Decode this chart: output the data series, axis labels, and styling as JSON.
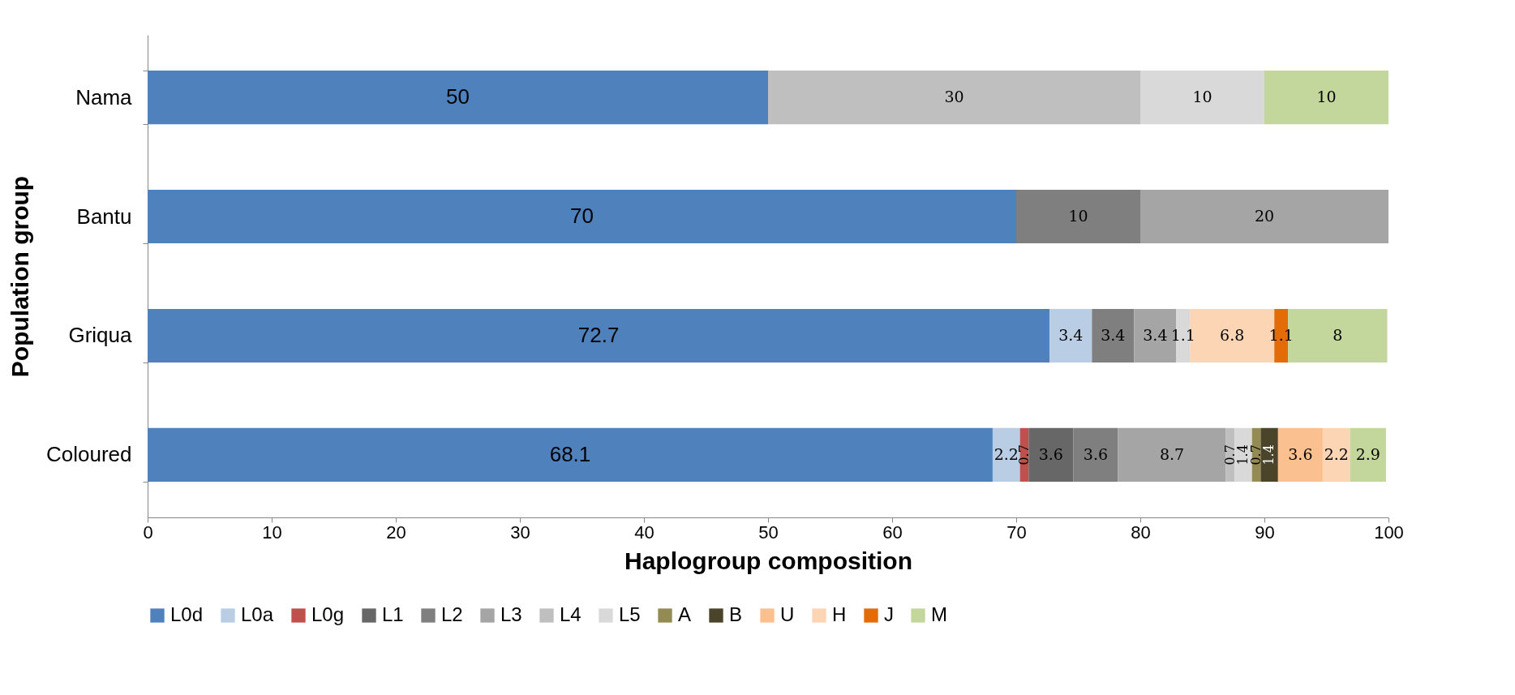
{
  "chart_data": {
    "type": "bar",
    "orientation": "horizontal",
    "stacked": true,
    "xlabel": "Haplogroup composition",
    "ylabel": "Population group",
    "categories": [
      "Nama",
      "Bantu",
      "Griqua",
      "Coloured"
    ],
    "series": [
      {
        "name": "L0d",
        "color": "#4f81bd",
        "values": [
          50,
          70,
          72.7,
          68.1
        ]
      },
      {
        "name": "L0a",
        "color": "#b9cde5",
        "values": [
          null,
          null,
          3.4,
          2.2
        ]
      },
      {
        "name": "L0g",
        "color": "#c0504d",
        "values": [
          null,
          null,
          null,
          0.7
        ]
      },
      {
        "name": "L1",
        "color": "#676767",
        "values": [
          null,
          null,
          null,
          3.6
        ]
      },
      {
        "name": "L2",
        "color": "#7f7f7f",
        "values": [
          null,
          10,
          3.4,
          3.6
        ]
      },
      {
        "name": "L3",
        "color": "#a5a5a5",
        "values": [
          null,
          20,
          3.4,
          8.7
        ]
      },
      {
        "name": "L4",
        "color": "#bfbfbf",
        "values": [
          30,
          null,
          null,
          0.7
        ]
      },
      {
        "name": "L5",
        "color": "#d9d9d9",
        "values": [
          10,
          null,
          1.1,
          1.4
        ]
      },
      {
        "name": "A",
        "color": "#948a54",
        "values": [
          null,
          null,
          null,
          0.7
        ]
      },
      {
        "name": "B",
        "color": "#4a452a",
        "values": [
          null,
          null,
          null,
          1.4
        ]
      },
      {
        "name": "U",
        "color": "#fac090",
        "values": [
          null,
          null,
          null,
          3.6
        ]
      },
      {
        "name": "H",
        "color": "#fcd5b5",
        "values": [
          null,
          null,
          6.8,
          2.2
        ]
      },
      {
        "name": "J",
        "color": "#e36c09",
        "values": [
          null,
          null,
          1.1,
          null
        ]
      },
      {
        "name": "M",
        "color": "#c3d69b",
        "values": [
          10,
          null,
          8,
          2.9
        ]
      }
    ],
    "xlim": [
      0,
      100
    ],
    "xticks": [
      0,
      10,
      20,
      30,
      40,
      50,
      60,
      70,
      80,
      90,
      100
    ],
    "data_labels": true,
    "legend": "bottom"
  }
}
